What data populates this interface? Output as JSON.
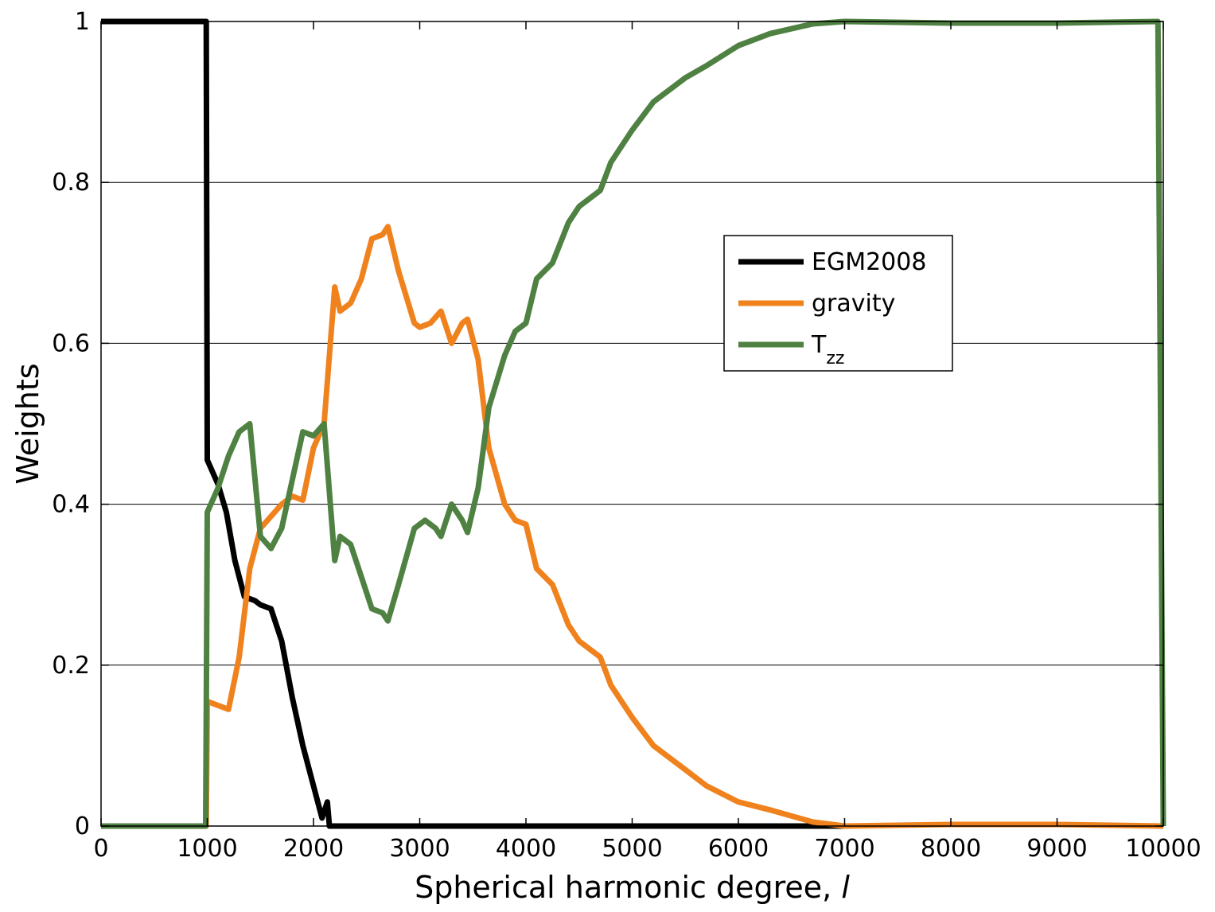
{
  "chart_data": {
    "type": "line",
    "xlabel": "Spherical harmonic degree, ",
    "xlabel_var": "l",
    "ylabel": "Weights",
    "xlim": [
      0,
      10000
    ],
    "ylim": [
      0,
      1
    ],
    "x_ticks": [
      "0",
      "1000",
      "2000",
      "3000",
      "4000",
      "5000",
      "6000",
      "7000",
      "8000",
      "9000",
      "10000"
    ],
    "y_ticks": [
      "0",
      "0.2",
      "0.4",
      "0.6",
      "0.8",
      "1"
    ],
    "grid": "horizontal",
    "legend_position": "upper-center-right",
    "series": [
      {
        "name": "EGM2008",
        "color": "#000000",
        "points": [
          [
            0,
            1
          ],
          [
            990,
            1
          ],
          [
            1000,
            0.455
          ],
          [
            1100,
            0.425
          ],
          [
            1180,
            0.39
          ],
          [
            1260,
            0.33
          ],
          [
            1350,
            0.285
          ],
          [
            1450,
            0.28
          ],
          [
            1500,
            0.275
          ],
          [
            1600,
            0.27
          ],
          [
            1700,
            0.23
          ],
          [
            1800,
            0.16
          ],
          [
            1900,
            0.1
          ],
          [
            2000,
            0.05
          ],
          [
            2080,
            0.01
          ],
          [
            2130,
            0.03
          ],
          [
            2150,
            0
          ],
          [
            3000,
            0
          ],
          [
            5000,
            0
          ],
          [
            6500,
            0
          ],
          [
            7000,
            0
          ]
        ]
      },
      {
        "name": "gravity",
        "color": "#f0821e",
        "points": [
          [
            0,
            0
          ],
          [
            990,
            0
          ],
          [
            1000,
            0.155
          ],
          [
            1100,
            0.15
          ],
          [
            1200,
            0.145
          ],
          [
            1300,
            0.21
          ],
          [
            1400,
            0.32
          ],
          [
            1500,
            0.37
          ],
          [
            1600,
            0.385
          ],
          [
            1700,
            0.4
          ],
          [
            1800,
            0.41
          ],
          [
            1900,
            0.405
          ],
          [
            2000,
            0.47
          ],
          [
            2100,
            0.5
          ],
          [
            2200,
            0.67
          ],
          [
            2250,
            0.64
          ],
          [
            2350,
            0.65
          ],
          [
            2450,
            0.68
          ],
          [
            2550,
            0.73
          ],
          [
            2650,
            0.735
          ],
          [
            2700,
            0.745
          ],
          [
            2800,
            0.69
          ],
          [
            2950,
            0.625
          ],
          [
            3000,
            0.62
          ],
          [
            3100,
            0.625
          ],
          [
            3200,
            0.64
          ],
          [
            3250,
            0.62
          ],
          [
            3300,
            0.6
          ],
          [
            3400,
            0.625
          ],
          [
            3450,
            0.63
          ],
          [
            3550,
            0.58
          ],
          [
            3650,
            0.47
          ],
          [
            3800,
            0.4
          ],
          [
            3900,
            0.38
          ],
          [
            4000,
            0.375
          ],
          [
            4100,
            0.32
          ],
          [
            4250,
            0.3
          ],
          [
            4400,
            0.25
          ],
          [
            4500,
            0.23
          ],
          [
            4700,
            0.21
          ],
          [
            4800,
            0.175
          ],
          [
            5000,
            0.135
          ],
          [
            5200,
            0.1
          ],
          [
            5500,
            0.07
          ],
          [
            5700,
            0.05
          ],
          [
            6000,
            0.03
          ],
          [
            6300,
            0.02
          ],
          [
            6700,
            0.005
          ],
          [
            7000,
            0
          ],
          [
            8000,
            0.002
          ],
          [
            9000,
            0.002
          ],
          [
            10000,
            0
          ]
        ]
      },
      {
        "name": "T",
        "name_sub": "zz",
        "color": "#4f8142",
        "points": [
          [
            0,
            0
          ],
          [
            985,
            0
          ],
          [
            1000,
            0.39
          ],
          [
            1100,
            0.42
          ],
          [
            1200,
            0.46
          ],
          [
            1300,
            0.49
          ],
          [
            1400,
            0.5
          ],
          [
            1500,
            0.36
          ],
          [
            1600,
            0.345
          ],
          [
            1700,
            0.37
          ],
          [
            1800,
            0.43
          ],
          [
            1900,
            0.49
          ],
          [
            2000,
            0.485
          ],
          [
            2100,
            0.5
          ],
          [
            2200,
            0.33
          ],
          [
            2250,
            0.36
          ],
          [
            2350,
            0.35
          ],
          [
            2450,
            0.31
          ],
          [
            2550,
            0.27
          ],
          [
            2650,
            0.265
          ],
          [
            2700,
            0.255
          ],
          [
            2800,
            0.3
          ],
          [
            2950,
            0.37
          ],
          [
            3050,
            0.38
          ],
          [
            3150,
            0.37
          ],
          [
            3200,
            0.36
          ],
          [
            3300,
            0.4
          ],
          [
            3400,
            0.38
          ],
          [
            3450,
            0.365
          ],
          [
            3550,
            0.42
          ],
          [
            3650,
            0.52
          ],
          [
            3800,
            0.585
          ],
          [
            3900,
            0.615
          ],
          [
            4000,
            0.625
          ],
          [
            4100,
            0.68
          ],
          [
            4250,
            0.7
          ],
          [
            4400,
            0.75
          ],
          [
            4500,
            0.77
          ],
          [
            4700,
            0.79
          ],
          [
            4800,
            0.825
          ],
          [
            5000,
            0.865
          ],
          [
            5200,
            0.9
          ],
          [
            5500,
            0.93
          ],
          [
            5700,
            0.945
          ],
          [
            6000,
            0.97
          ],
          [
            6300,
            0.985
          ],
          [
            6700,
            0.997
          ],
          [
            7000,
            1
          ],
          [
            8000,
            0.998
          ],
          [
            9000,
            0.998
          ],
          [
            9950,
            1
          ],
          [
            10000,
            0
          ]
        ]
      }
    ]
  }
}
